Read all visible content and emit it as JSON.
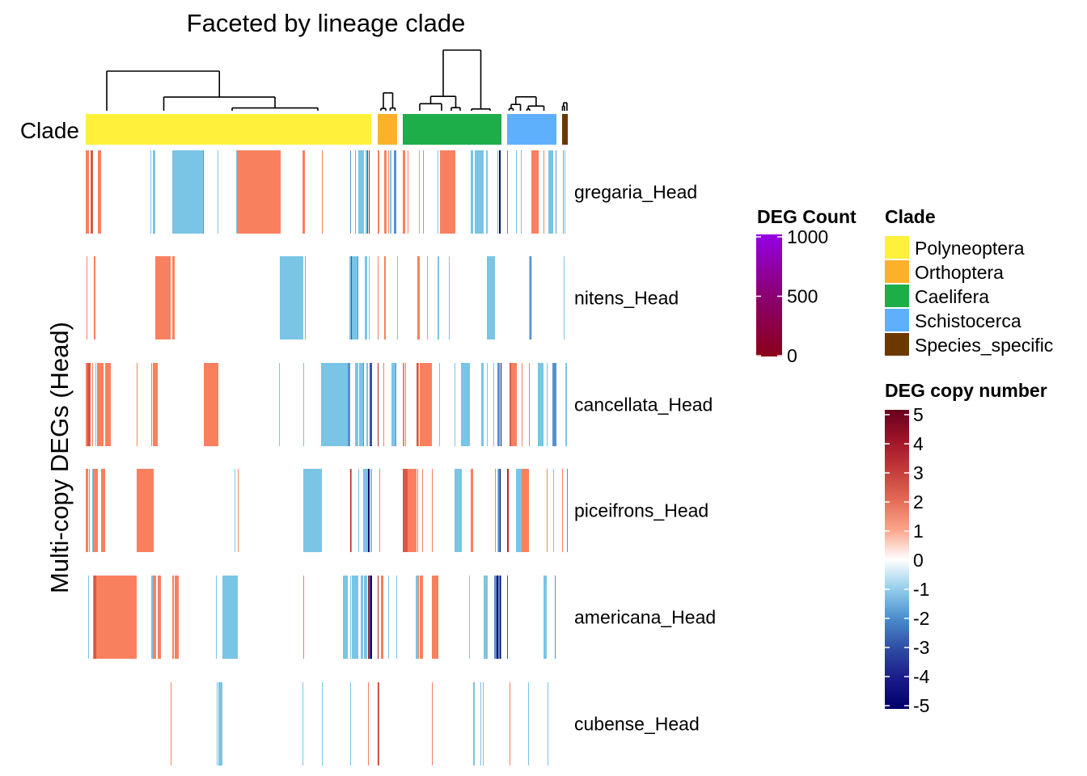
{
  "chart_data": {
    "type": "heatmap",
    "title": "Faceted by lineage clade",
    "ylabel": "Multi-copy DEGs (Head)",
    "xlabel": "",
    "n_columns": 596,
    "annotation_label": "Clade",
    "clades": [
      {
        "name": "Polyneoptera",
        "start": 0,
        "end": 353,
        "color": "#FFF13B",
        "tree_top": 0.0
      },
      {
        "name": "Orthoptera",
        "start": 361,
        "end": 385,
        "color": "#FDB12A",
        "tree_top": 0.55
      },
      {
        "name": "Caelifera",
        "start": 392,
        "end": 514,
        "color": "#1DAE4A",
        "tree_top": -0.35
      },
      {
        "name": "Schistocerca",
        "start": 521,
        "end": 582,
        "color": "#5EB0FD",
        "tree_top": 0.65
      },
      {
        "name": "Species_specific",
        "start": 589,
        "end": 596,
        "color": "#6B3800",
        "tree_top": 0.8
      }
    ],
    "value_colors": {
      "5": "#67001F",
      "4": "#8E0D25",
      "3": "#B0282C",
      "2": "#D95847",
      "1": "#F9805F",
      "0": "#FFFFFF",
      "-1": "#7AC4E6",
      "-2": "#5A8FCF",
      "-3": "#3953A8",
      "-4": "#1A1F8A",
      "-5": "#0B0B6E"
    },
    "rows": [
      {
        "label": "gregaria_Head",
        "segments": [
          [
            0,
            4,
            1
          ],
          [
            6,
            9,
            2
          ],
          [
            15,
            19,
            1
          ],
          [
            80,
            81,
            -1
          ],
          [
            83,
            86,
            -1
          ],
          [
            107,
            145,
            -1
          ],
          [
            145,
            146,
            -2
          ],
          [
            163,
            164,
            -1
          ],
          [
            186,
            187,
            -1
          ],
          [
            187,
            241,
            1
          ],
          [
            268,
            271,
            1
          ],
          [
            292,
            293,
            1
          ],
          [
            327,
            328,
            -2
          ],
          [
            333,
            334,
            1
          ],
          [
            337,
            344,
            -1
          ],
          [
            346,
            348,
            -1
          ],
          [
            348,
            349,
            -3
          ],
          [
            350,
            351,
            3
          ],
          [
            361,
            363,
            1
          ],
          [
            369,
            372,
            1
          ],
          [
            374,
            375,
            1
          ],
          [
            376,
            378,
            -1
          ],
          [
            381,
            384,
            -2
          ],
          [
            392,
            395,
            1
          ],
          [
            398,
            399,
            1
          ],
          [
            412,
            413,
            -1
          ],
          [
            417,
            418,
            1
          ],
          [
            435,
            436,
            -1
          ],
          [
            438,
            457,
            1
          ],
          [
            476,
            479,
            -1
          ],
          [
            481,
            492,
            -1
          ],
          [
            495,
            497,
            -1
          ],
          [
            509,
            510,
            -1
          ],
          [
            511,
            513,
            -5
          ],
          [
            521,
            522,
            2
          ],
          [
            532,
            533,
            -1
          ],
          [
            538,
            539,
            -1
          ],
          [
            551,
            560,
            1
          ],
          [
            566,
            567,
            1
          ],
          [
            572,
            578,
            -1
          ],
          [
            581,
            582,
            -2
          ],
          [
            590,
            591,
            1
          ],
          [
            592,
            593,
            -1
          ]
        ]
      },
      {
        "label": "nitens_Head",
        "segments": [
          [
            1,
            2,
            1
          ],
          [
            10,
            12,
            1
          ],
          [
            86,
            105,
            1
          ],
          [
            107,
            110,
            1
          ],
          [
            240,
            269,
            -1
          ],
          [
            271,
            272,
            1
          ],
          [
            326,
            337,
            -1
          ],
          [
            328,
            329,
            -3
          ],
          [
            336,
            337,
            -2
          ],
          [
            345,
            348,
            -1
          ],
          [
            350,
            351,
            -1
          ],
          [
            361,
            362,
            1
          ],
          [
            369,
            371,
            1
          ],
          [
            385,
            386,
            -1
          ],
          [
            410,
            413,
            1
          ],
          [
            422,
            423,
            -1
          ],
          [
            435,
            437,
            -1
          ],
          [
            449,
            450,
            -1
          ],
          [
            496,
            506,
            -1
          ],
          [
            548,
            551,
            -1
          ],
          [
            550,
            551,
            -3
          ],
          [
            591,
            592,
            -1
          ]
        ]
      },
      {
        "label": "cancellata_Head",
        "segments": [
          [
            0,
            2,
            1
          ],
          [
            2,
            6,
            2
          ],
          [
            8,
            9,
            1
          ],
          [
            12,
            13,
            -1
          ],
          [
            14,
            22,
            1
          ],
          [
            24,
            31,
            1
          ],
          [
            63,
            64,
            1
          ],
          [
            81,
            82,
            1
          ],
          [
            83,
            89,
            1
          ],
          [
            146,
            164,
            1
          ],
          [
            239,
            240,
            -1
          ],
          [
            269,
            270,
            -1
          ],
          [
            291,
            324,
            -1
          ],
          [
            324,
            327,
            -2
          ],
          [
            333,
            337,
            -1
          ],
          [
            338,
            343,
            -1
          ],
          [
            343,
            344,
            -2
          ],
          [
            347,
            349,
            -1
          ],
          [
            351,
            354,
            -3
          ],
          [
            361,
            362,
            3
          ],
          [
            368,
            369,
            1
          ],
          [
            378,
            384,
            -1
          ],
          [
            383,
            384,
            -2
          ],
          [
            392,
            394,
            1
          ],
          [
            395,
            396,
            1
          ],
          [
            409,
            411,
            2
          ],
          [
            411,
            412,
            1
          ],
          [
            413,
            428,
            1
          ],
          [
            437,
            438,
            -1
          ],
          [
            456,
            457,
            -1
          ],
          [
            464,
            475,
            -1
          ],
          [
            489,
            492,
            -1
          ],
          [
            496,
            497,
            -1
          ],
          [
            504,
            505,
            -1
          ],
          [
            509,
            512,
            -2
          ],
          [
            513,
            514,
            -5
          ],
          [
            524,
            526,
            2
          ],
          [
            526,
            533,
            1
          ],
          [
            539,
            540,
            1
          ],
          [
            548,
            549,
            1
          ],
          [
            559,
            566,
            -1
          ],
          [
            570,
            571,
            -1
          ],
          [
            577,
            582,
            -2
          ],
          [
            593,
            595,
            -1
          ]
        ]
      },
      {
        "label": "piceifrons_Head",
        "segments": [
          [
            0,
            3,
            1
          ],
          [
            4,
            5,
            1
          ],
          [
            8,
            9,
            -1
          ],
          [
            9,
            15,
            1
          ],
          [
            19,
            24,
            1
          ],
          [
            63,
            84,
            1
          ],
          [
            184,
            185,
            -1
          ],
          [
            188,
            189,
            1
          ],
          [
            269,
            292,
            -1
          ],
          [
            327,
            328,
            3
          ],
          [
            328,
            329,
            1
          ],
          [
            337,
            338,
            -1
          ],
          [
            343,
            349,
            -1
          ],
          [
            349,
            351,
            -5
          ],
          [
            352,
            354,
            -1
          ],
          [
            363,
            364,
            1
          ],
          [
            392,
            394,
            2
          ],
          [
            394,
            398,
            2
          ],
          [
            398,
            409,
            1
          ],
          [
            410,
            411,
            1
          ],
          [
            416,
            417,
            1
          ],
          [
            428,
            429,
            1
          ],
          [
            456,
            465,
            -1
          ],
          [
            476,
            479,
            1
          ],
          [
            506,
            507,
            1
          ],
          [
            509,
            510,
            -1
          ],
          [
            510,
            512,
            -2
          ],
          [
            512,
            513,
            -5
          ],
          [
            521,
            523,
            3
          ],
          [
            532,
            539,
            -1
          ],
          [
            539,
            548,
            1
          ],
          [
            570,
            571,
            1
          ],
          [
            578,
            579,
            -1
          ],
          [
            589,
            590,
            1
          ],
          [
            595,
            596,
            -2
          ]
        ]
      },
      {
        "label": "americana_Head",
        "segments": [
          [
            3,
            4,
            -1
          ],
          [
            9,
            10,
            1
          ],
          [
            10,
            13,
            2
          ],
          [
            13,
            63,
            1
          ],
          [
            81,
            83,
            -1
          ],
          [
            83,
            87,
            1
          ],
          [
            89,
            93,
            1
          ],
          [
            107,
            109,
            1
          ],
          [
            110,
            115,
            1
          ],
          [
            161,
            162,
            -1
          ],
          [
            169,
            188,
            -1
          ],
          [
            269,
            270,
            1
          ],
          [
            318,
            324,
            -1
          ],
          [
            327,
            328,
            -1
          ],
          [
            329,
            337,
            -1
          ],
          [
            340,
            343,
            -1
          ],
          [
            344,
            348,
            -1
          ],
          [
            349,
            350,
            3
          ],
          [
            350,
            352,
            -3
          ],
          [
            352,
            354,
            -5
          ],
          [
            361,
            362,
            3
          ],
          [
            365,
            368,
            1
          ],
          [
            374,
            375,
            -1
          ],
          [
            384,
            385,
            -1
          ],
          [
            408,
            411,
            -1
          ],
          [
            411,
            412,
            1
          ],
          [
            413,
            417,
            1
          ],
          [
            428,
            436,
            1
          ],
          [
            474,
            475,
            -1
          ],
          [
            492,
            497,
            -1
          ],
          [
            505,
            514,
            -2
          ],
          [
            508,
            510,
            -5
          ],
          [
            512,
            513,
            -5
          ],
          [
            521,
            522,
            3
          ],
          [
            566,
            570,
            -1
          ],
          [
            580,
            581,
            -2
          ]
        ]
      },
      {
        "label": "cubense_Head",
        "segments": [
          [
            105,
            106,
            1
          ],
          [
            162,
            163,
            -1
          ],
          [
            164,
            169,
            -1
          ],
          [
            268,
            269,
            -1
          ],
          [
            292,
            293,
            -1
          ],
          [
            327,
            328,
            -1
          ],
          [
            349,
            350,
            1
          ],
          [
            361,
            362,
            3
          ],
          [
            362,
            363,
            1
          ],
          [
            428,
            429,
            1
          ],
          [
            479,
            481,
            -1
          ],
          [
            488,
            489,
            -1
          ],
          [
            491,
            492,
            -1
          ],
          [
            524,
            525,
            1
          ],
          [
            547,
            548,
            -1
          ],
          [
            571,
            572,
            -1
          ]
        ]
      }
    ],
    "legends": {
      "deg_count": {
        "title": "DEG Count",
        "range": [
          0,
          1000
        ],
        "ticks": [
          1000,
          500,
          0
        ],
        "colors": [
          "#8B0019",
          "#8B0070",
          "#9400E6"
        ]
      },
      "clade": {
        "title": "Clade",
        "items": [
          "Polyneoptera",
          "Orthoptera",
          "Caelifera",
          "Schistocerca",
          "Species_specific"
        ]
      },
      "copy_number": {
        "title": "DEG copy number",
        "range": [
          -5,
          5
        ],
        "ticks": [
          5,
          4,
          3,
          2,
          1,
          0,
          -1,
          -2,
          -3,
          -4,
          -5
        ]
      }
    }
  }
}
